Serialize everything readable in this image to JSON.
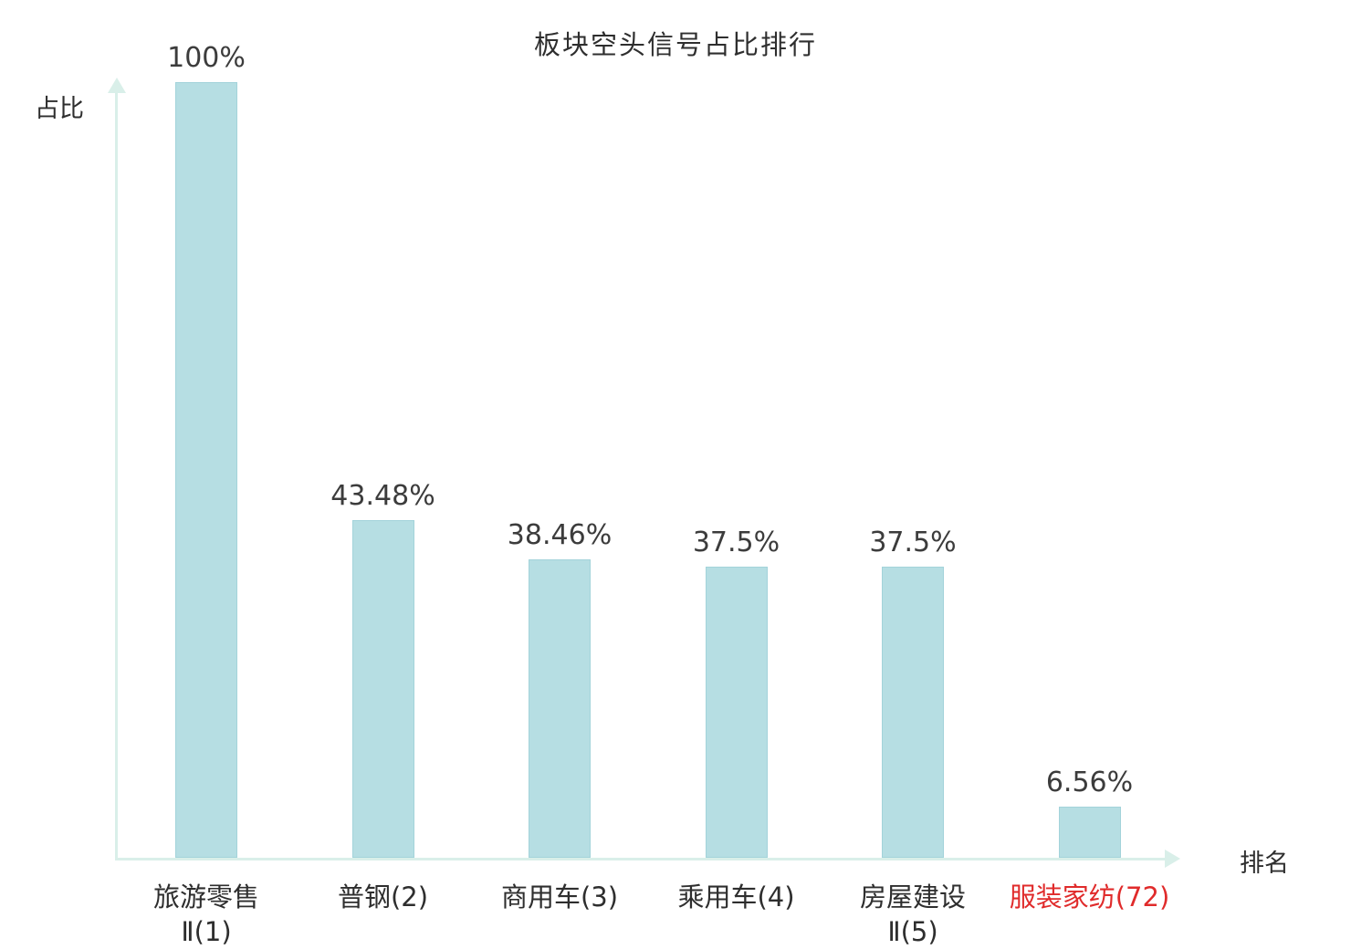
{
  "chart_data": {
    "type": "bar",
    "title": "板块空头信号占比排行",
    "ylabel": "占比",
    "xlabel": "排名",
    "ylim": [
      0,
      100
    ],
    "grid": false,
    "legend": null,
    "categories": [
      "旅游零售Ⅱ(1)",
      "普钢(2)",
      "商用车(3)",
      "乘用车(4)",
      "房屋建设Ⅱ(5)",
      "服装家纺(72)"
    ],
    "category_lines": [
      [
        "旅游零售",
        "Ⅱ(1)"
      ],
      [
        "普钢(2)"
      ],
      [
        "商用车(3)"
      ],
      [
        "乘用车(4)"
      ],
      [
        "房屋建设",
        "Ⅱ(5)"
      ],
      [
        "服装家纺(72)"
      ]
    ],
    "values": [
      100,
      43.48,
      38.46,
      37.5,
      37.5,
      6.56
    ],
    "value_labels": [
      "100%",
      "43.48%",
      "38.46%",
      "37.5%",
      "37.5%",
      "6.56%"
    ],
    "highlight_index": 5,
    "colors": {
      "bar_fill": "#b6dee3",
      "bar_border": "#a3d3da",
      "axis": "#d9efe9",
      "text": "#2e2e2e",
      "value_text": "#3c3c3c",
      "highlight_text": "#e02b2b"
    }
  }
}
